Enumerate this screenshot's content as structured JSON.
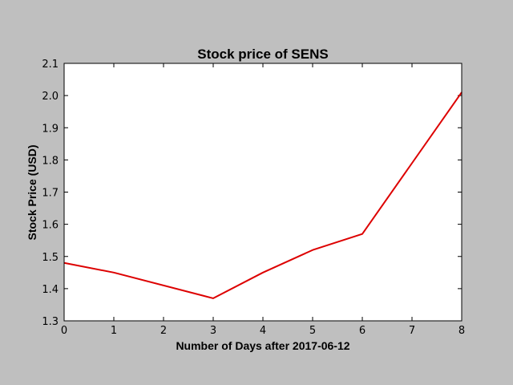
{
  "chart_data": {
    "type": "line",
    "title": "Stock price of SENS",
    "xlabel": "Number of Days after 2017-06-12",
    "ylabel": "Stock Price (USD)",
    "xlim": [
      0,
      8
    ],
    "ylim": [
      1.3,
      2.1
    ],
    "xticks": [
      "0",
      "1",
      "2",
      "3",
      "4",
      "5",
      "6",
      "7",
      "8"
    ],
    "yticks": [
      "1.3",
      "1.4",
      "1.5",
      "1.6",
      "1.7",
      "1.8",
      "1.9",
      "2.0",
      "2.1"
    ],
    "grid": false,
    "series": [
      {
        "color": "#dd0000",
        "x": [
          0,
          1,
          3,
          4,
          5,
          6,
          8
        ],
        "values": [
          1.48,
          1.45,
          1.37,
          1.45,
          1.52,
          1.57,
          2.01
        ]
      }
    ]
  },
  "colors": {
    "figure_background": "#bfbfbf",
    "plot_background": "#ffffff",
    "line": "#dd0000"
  }
}
